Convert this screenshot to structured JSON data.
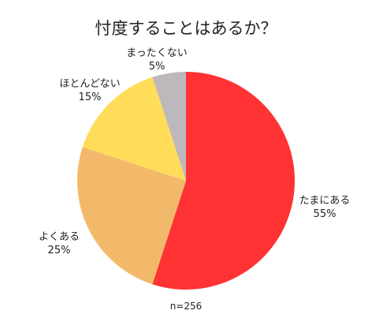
{
  "chart_data": {
    "type": "pie",
    "title": "忖度することはあるか？",
    "note": "n=256",
    "start": "12 o'clock",
    "direction": "clockwise",
    "slices": [
      {
        "label": "たまにある",
        "value": 55,
        "value_label": "55%",
        "color": "#ff3333"
      },
      {
        "label": "よくある",
        "value": 25,
        "value_label": "25%",
        "color": "#f3b96b"
      },
      {
        "label": "ほとんどない",
        "value": 15,
        "value_label": "15%",
        "color": "#ffdd5a"
      },
      {
        "label": "まったくない",
        "value": 5,
        "value_label": "5%",
        "color": "#bdb8bb"
      }
    ]
  }
}
